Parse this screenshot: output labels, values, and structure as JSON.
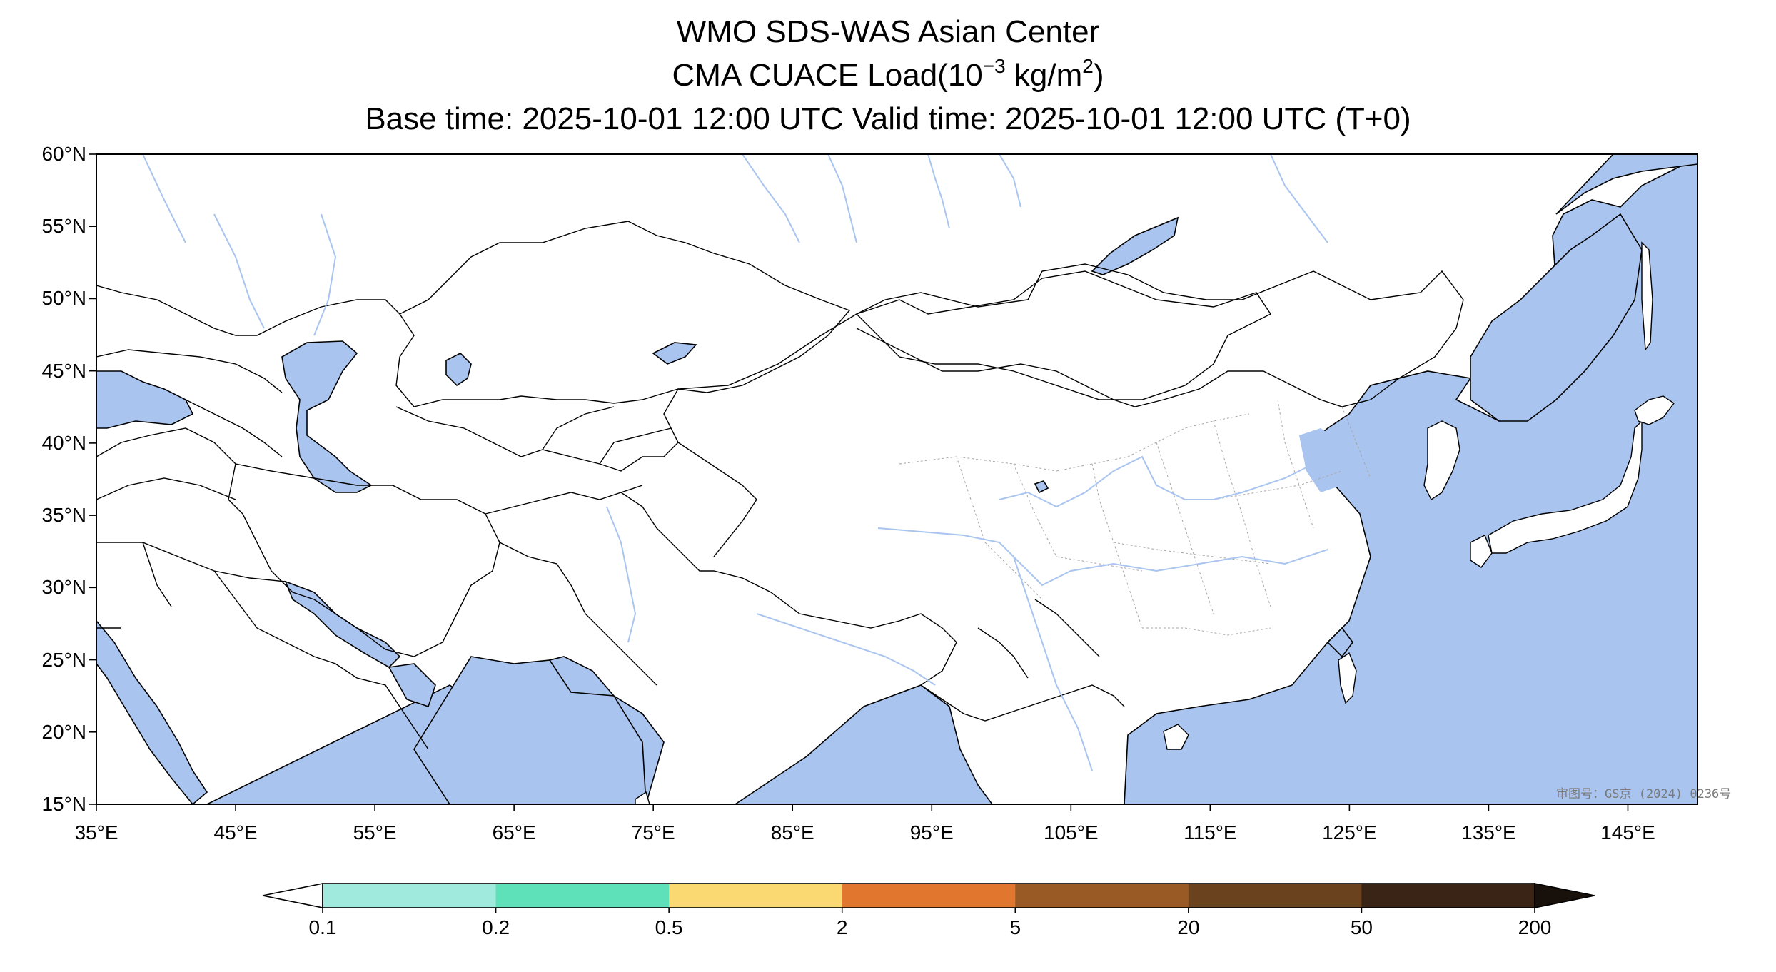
{
  "title": {
    "line1": "WMO SDS-WAS Asian Center",
    "line2_prefix": "CMA CUACE Load(10",
    "line2_exp": "−3",
    "line2_mid": " kg/m",
    "line2_unit_exp": "2",
    "line2_suffix": ")",
    "line3": "Base time: 2025-10-01 12:00 UTC Valid time: 2025-10-01 12:00 UTC (T+0)"
  },
  "map": {
    "lon_range": [
      35,
      150
    ],
    "lat_range": [
      15,
      60
    ],
    "ocean_color": "#a9c5ef",
    "land_color": "#ffffff",
    "river_color": "#a9c5ef",
    "approval_text": "审图号：GS京 (2024) 0236号"
  },
  "axes": {
    "lat_ticks": [
      "15°N",
      "20°N",
      "25°N",
      "30°N",
      "35°N",
      "40°N",
      "45°N",
      "50°N",
      "55°N",
      "60°N"
    ],
    "lon_ticks": [
      "35°E",
      "45°E",
      "55°E",
      "65°E",
      "75°E",
      "85°E",
      "95°E",
      "105°E",
      "115°E",
      "125°E",
      "135°E",
      "145°E"
    ]
  },
  "colorbar": {
    "levels": [
      "0.1",
      "0.2",
      "0.5",
      "2",
      "5",
      "20",
      "50",
      "200"
    ],
    "colors": [
      "#9feadd",
      "#5ee0b8",
      "#fad872",
      "#e1772f",
      "#9a5a25",
      "#6a421d",
      "#3a2415",
      "#18100a"
    ],
    "extend": "both"
  }
}
